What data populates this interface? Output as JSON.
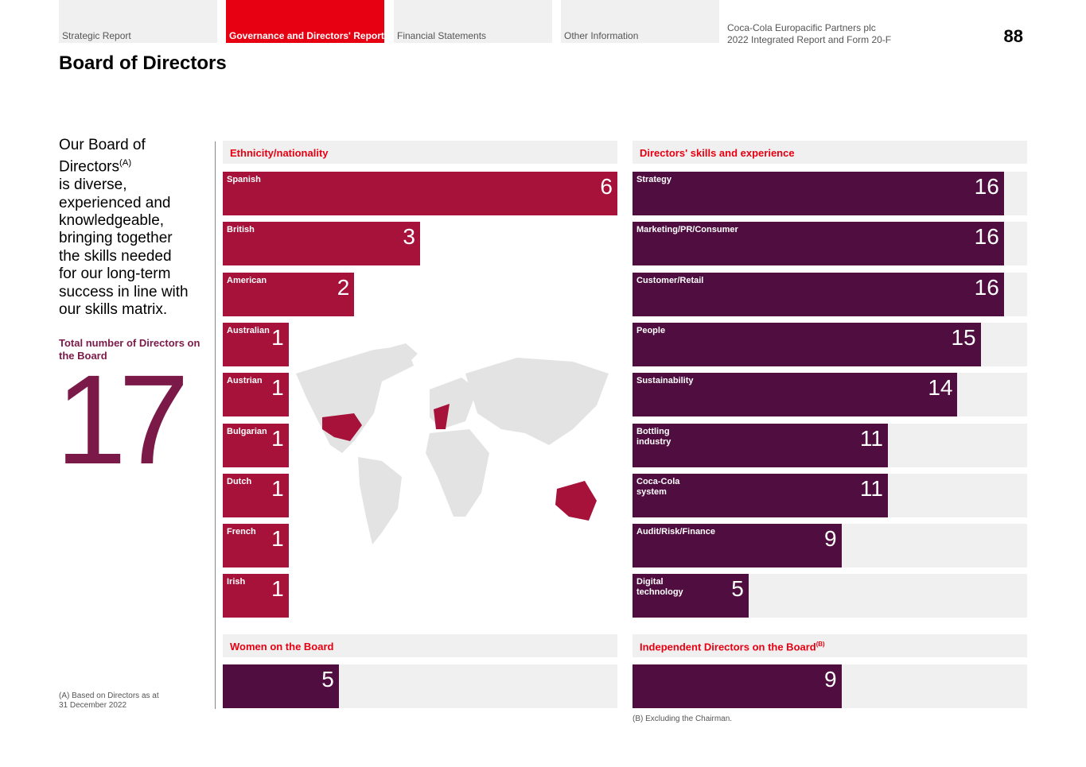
{
  "header": {
    "tabs": [
      "Strategic Report",
      "Governance and Directors' Report",
      "Financial Statements",
      "Other Information"
    ],
    "active_tab": 1,
    "company": "Coca-Cola Europacific Partners plc",
    "report": "2022 Integrated Report and Form 20-F",
    "page_number": 88
  },
  "title": "Board of Directors",
  "intro": {
    "lines": [
      "Our Board of",
      "Directors",
      "is diverse,",
      "experienced and",
      "knowledgeable,",
      "bringing together",
      "the skills needed",
      "for our long-term",
      "success in line with",
      "our skills matrix."
    ],
    "note_ref": "(A)"
  },
  "total": {
    "label": "Total number of Directors on the Board",
    "value": 17
  },
  "footnotes": [
    {
      "ref": "(A)",
      "text": "Based on Directors as at 31 December 2022"
    },
    {
      "ref": "(B)",
      "text": "Excluding the Chairman."
    }
  ],
  "chart_data": [
    {
      "type": "bar",
      "title": "Ethnicity/nationality",
      "categories": [
        "Spanish",
        "British",
        "American",
        "Australian",
        "Austrian",
        "Bulgarian",
        "Dutch",
        "French",
        "Irish"
      ],
      "values": [
        6,
        3,
        2,
        1,
        1,
        1,
        1,
        1,
        1
      ],
      "color": "#a6123a",
      "xlim": [
        0,
        6
      ],
      "track": false
    },
    {
      "type": "bar",
      "title": "Directors' skills and experience",
      "categories": [
        "Strategy",
        "Marketing/PR/Consumer",
        "Customer/Retail",
        "People",
        "Sustainability",
        "Bottling industry",
        "Coca-Cola system",
        "Audit/Risk/Finance",
        "Digital technology"
      ],
      "values": [
        16,
        16,
        16,
        15,
        14,
        11,
        11,
        9,
        5
      ],
      "color": "#4f0d40",
      "xlim": [
        0,
        17
      ],
      "track": true
    },
    {
      "type": "bar",
      "title": "Women on the Board",
      "values": [
        5
      ],
      "color": "#4f0d40",
      "xlim": [
        0,
        17
      ],
      "track": true
    },
    {
      "type": "bar",
      "title": "Independent Directors on the Board",
      "title_note": "(B)",
      "values": [
        9
      ],
      "color": "#4f0d40",
      "xlim": [
        0,
        17
      ],
      "track": true
    }
  ]
}
